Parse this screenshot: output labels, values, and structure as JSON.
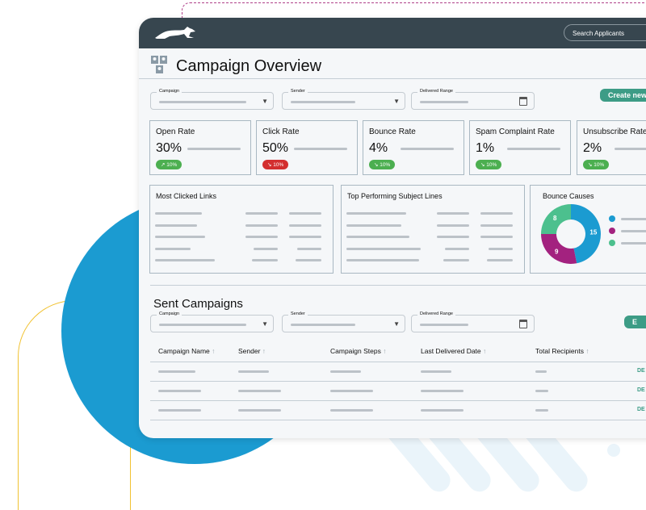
{
  "header": {
    "search_placeholder": "Search Applicants",
    "logo": "leaping-cat-logo"
  },
  "page": {
    "title": "Campaign Overview",
    "create_button": "Create new c"
  },
  "filters": {
    "campaign": "Campaign",
    "sender": "Sender",
    "range": "Delivered Range"
  },
  "metrics": [
    {
      "name": "Open Rate",
      "value": "30%",
      "change": "10%",
      "trend": "up",
      "color": "#4caf50"
    },
    {
      "name": "Click Rate",
      "value": "50%",
      "change": "10%",
      "trend": "down",
      "color": "#d32f2f"
    },
    {
      "name": "Bounce Rate",
      "value": "4%",
      "change": "10%",
      "trend": "down",
      "color": "#4caf50"
    },
    {
      "name": "Spam Complaint Rate",
      "value": "1%",
      "change": "10%",
      "trend": "down",
      "color": "#4caf50"
    },
    {
      "name": "Unsubscribe Rate",
      "value": "2%",
      "change": "10%",
      "trend": "down",
      "color": "#4caf50"
    }
  ],
  "panels": {
    "links": "Most Clicked Links",
    "subjects": "Top Performing Subject Lines",
    "bounce": "Bounce Causes"
  },
  "bounce_chart": {
    "values": [
      15,
      9,
      8
    ],
    "colors": [
      "#1b9bd1",
      "#a3227f",
      "#4cc08e"
    ]
  },
  "sent": {
    "title": "Sent Campaigns",
    "export_button": "E",
    "columns": [
      "Campaign Name",
      "Sender",
      "Campaign Steps",
      "Last Delivered Date",
      "Total Recipients"
    ],
    "row_action": "DE"
  }
}
